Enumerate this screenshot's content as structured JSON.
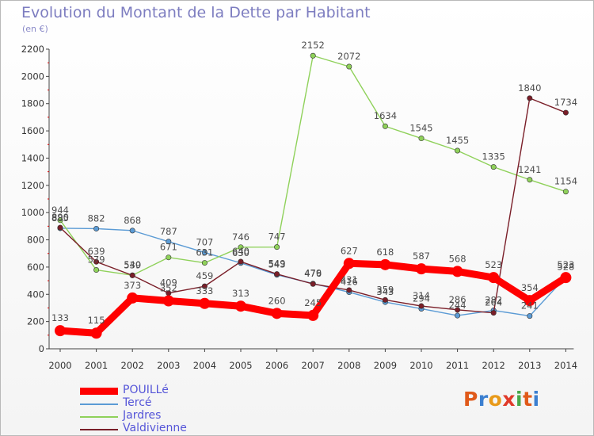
{
  "header": {
    "title": "Evolution du Montant de la Dette par Habitant",
    "subtitle": "(en €)"
  },
  "logo": {
    "text": "Proxiti",
    "letter_colors": [
      "#e05a1a",
      "#3b7fd0",
      "#e89a1a",
      "#e03a2a",
      "#49a84a",
      "#e05a1a",
      "#3b7fd0"
    ]
  },
  "chart_data": {
    "type": "line",
    "title": "Evolution du Montant de la Dette par Habitant",
    "ylabel": "(en €)",
    "xlabel": "",
    "ylim": [
      0,
      2200
    ],
    "yticks": [
      0,
      200,
      400,
      600,
      800,
      1000,
      1200,
      1400,
      1600,
      1800,
      2000,
      2200
    ],
    "grid": false,
    "legend_position": "bottom-left",
    "categories": [
      "2000",
      "2001",
      "2002",
      "2003",
      "2004",
      "2005",
      "2006",
      "2007",
      "2008",
      "2009",
      "2010",
      "2011",
      "2012",
      "2013",
      "2014"
    ],
    "series": [
      {
        "name": "Tercé",
        "color": "#5b9bd5",
        "values": [
          885,
          882,
          868,
          787,
          707,
          630,
          543,
          479,
          416,
          343,
          294,
          244,
          282,
          241,
          528
        ]
      },
      {
        "name": "Jardres",
        "color": "#8fd15a",
        "values": [
          944,
          579,
          540,
          671,
          631,
          746,
          747,
          2152,
          2072,
          1634,
          1545,
          1455,
          1335,
          1241,
          1154
        ]
      },
      {
        "name": "Valdivienne",
        "color": "#7a1e28",
        "values": [
          890,
          639,
          539,
          409,
          459,
          640,
          549,
          476,
          431,
          359,
          314,
          286,
          264,
          1840,
          1734
        ]
      },
      {
        "name": "POUILLé",
        "color": "#ff0000",
        "values": [
          133,
          115,
          373,
          352,
          333,
          313,
          260,
          245,
          627,
          618,
          587,
          568,
          523,
          354,
          523
        ]
      }
    ],
    "legend_order": [
      "POUILLé",
      "Tercé",
      "Jardres",
      "Valdivienne"
    ]
  }
}
